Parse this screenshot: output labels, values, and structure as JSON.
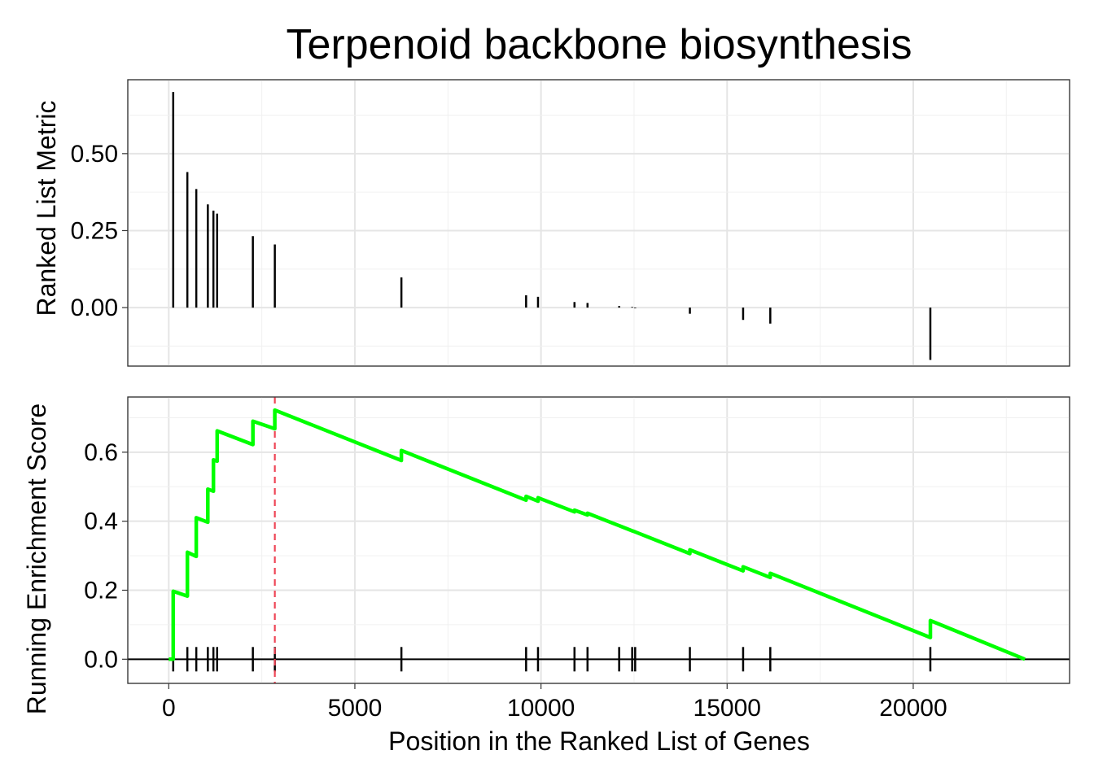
{
  "chart_data": {
    "type": "line",
    "title": "Terpenoid backbone biosynthesis",
    "xlabel": "Position in the Ranked List of Genes",
    "xlim": [
      -1100,
      24200
    ],
    "x_ticks": [
      0,
      5000,
      10000,
      15000,
      20000
    ],
    "grid": true,
    "legend": "none",
    "colors": {
      "running_es": "#00FF00",
      "max_es_line": "#EE4455",
      "ranked_bars": "#000000",
      "hits": "#000000"
    },
    "panels": [
      {
        "name": "ranked-metric",
        "type": "bar",
        "ylabel": "Ranked List Metric",
        "ylim": [
          -0.19,
          0.74
        ],
        "y_ticks": [
          0.0,
          0.25,
          0.5
        ],
        "y_tick_labels": [
          "0.00",
          "0.25",
          "0.50"
        ],
        "bars": [
          {
            "x": 120,
            "y": 0.7
          },
          {
            "x": 500,
            "y": 0.44
          },
          {
            "x": 740,
            "y": 0.385
          },
          {
            "x": 1050,
            "y": 0.335
          },
          {
            "x": 1200,
            "y": 0.315
          },
          {
            "x": 1300,
            "y": 0.305
          },
          {
            "x": 2260,
            "y": 0.232
          },
          {
            "x": 2850,
            "y": 0.205
          },
          {
            "x": 6250,
            "y": 0.098
          },
          {
            "x": 9600,
            "y": 0.04
          },
          {
            "x": 9920,
            "y": 0.035
          },
          {
            "x": 10900,
            "y": 0.018
          },
          {
            "x": 11250,
            "y": 0.015
          },
          {
            "x": 12100,
            "y": 0.005
          },
          {
            "x": 12450,
            "y": 0.002
          },
          {
            "x": 12530,
            "y": -0.002
          },
          {
            "x": 14000,
            "y": -0.02
          },
          {
            "x": 15430,
            "y": -0.04
          },
          {
            "x": 16160,
            "y": -0.052
          },
          {
            "x": 20460,
            "y": -0.17
          }
        ]
      },
      {
        "name": "running-enrichment",
        "type": "line",
        "ylabel": "Running Enrichment Score",
        "ylim": [
          -0.07,
          0.76
        ],
        "y_ticks": [
          0.0,
          0.2,
          0.4,
          0.6
        ],
        "y_tick_labels": [
          "0.0",
          "0.2",
          "0.4",
          "0.6"
        ],
        "max_es_x": 2850,
        "zero_line": 0,
        "series": [
          {
            "x": [
              0,
              120,
              120,
              500,
              500,
              740,
              740,
              1050,
              1050,
              1200,
              1200,
              1300,
              1300,
              2260,
              2260,
              2850,
              2850,
              6250,
              6250,
              9600,
              9600,
              9920,
              9920,
              10900,
              10900,
              11250,
              11250,
              12100,
              12100,
              12450,
              12450,
              12530,
              12530,
              14000,
              14000,
              15430,
              15430,
              16160,
              16160,
              20460,
              20460,
              23000
            ],
            "y": [
              0.0,
              0.0,
              0.197,
              0.183,
              0.31,
              0.298,
              0.41,
              0.397,
              0.493,
              0.487,
              0.578,
              0.574,
              0.662,
              0.622,
              0.69,
              0.668,
              0.722,
              0.576,
              0.605,
              0.461,
              0.472,
              0.458,
              0.468,
              0.427,
              0.432,
              0.418,
              0.423,
              0.387,
              0.387,
              0.372,
              0.372,
              0.369,
              0.369,
              0.306,
              0.317,
              0.256,
              0.268,
              0.237,
              0.249,
              0.063,
              0.112,
              0.0
            ]
          }
        ],
        "hits_x": [
          120,
          500,
          740,
          1050,
          1200,
          1300,
          2260,
          2850,
          6250,
          9600,
          9920,
          10900,
          11250,
          12100,
          12450,
          12530,
          14000,
          15430,
          16160,
          20460
        ]
      }
    ]
  }
}
